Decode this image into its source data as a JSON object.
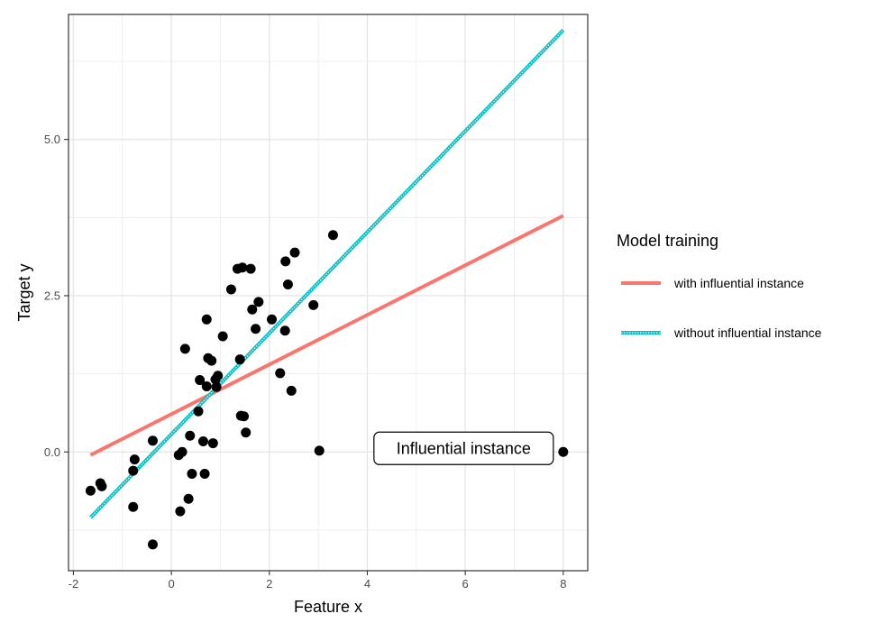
{
  "chart_data": {
    "type": "scatter",
    "title": "",
    "xlabel": "Feature x",
    "ylabel": "Target y",
    "xlim": [
      -2.1,
      8.5
    ],
    "ylim": [
      -1.9,
      7.0
    ],
    "x_ticks": [
      -2,
      0,
      2,
      4,
      6,
      8
    ],
    "x_tick_labels": [
      "-2",
      "0",
      "2",
      "4",
      "6",
      "8"
    ],
    "y_ticks": [
      0,
      2.5,
      5
    ],
    "y_tick_labels": [
      "0.0",
      "2.5",
      "5.0"
    ],
    "grid": true,
    "points": [
      {
        "x": -1.65,
        "y": -0.62
      },
      {
        "x": -1.42,
        "y": -0.55
      },
      {
        "x": -1.45,
        "y": -0.5
      },
      {
        "x": -0.75,
        "y": -0.12
      },
      {
        "x": -0.78,
        "y": -0.3
      },
      {
        "x": -0.78,
        "y": -0.88
      },
      {
        "x": -0.38,
        "y": 0.18
      },
      {
        "x": -0.38,
        "y": -1.48
      },
      {
        "x": 0.15,
        "y": -0.05
      },
      {
        "x": 0.22,
        "y": 0.0
      },
      {
        "x": 0.18,
        "y": -0.95
      },
      {
        "x": 0.35,
        "y": -0.75
      },
      {
        "x": 0.38,
        "y": 0.26
      },
      {
        "x": 0.42,
        "y": -0.35
      },
      {
        "x": 0.68,
        "y": -0.35
      },
      {
        "x": 0.65,
        "y": 0.17
      },
      {
        "x": 0.85,
        "y": 0.14
      },
      {
        "x": 0.55,
        "y": 0.65
      },
      {
        "x": 0.28,
        "y": 1.65
      },
      {
        "x": 0.58,
        "y": 1.15
      },
      {
        "x": 0.72,
        "y": 1.05
      },
      {
        "x": 0.72,
        "y": 2.12
      },
      {
        "x": 0.75,
        "y": 1.5
      },
      {
        "x": 0.82,
        "y": 1.46
      },
      {
        "x": 0.92,
        "y": 1.04
      },
      {
        "x": 0.9,
        "y": 1.16
      },
      {
        "x": 0.95,
        "y": 1.22
      },
      {
        "x": 1.05,
        "y": 1.85
      },
      {
        "x": 1.22,
        "y": 2.6
      },
      {
        "x": 1.35,
        "y": 2.93
      },
      {
        "x": 1.45,
        "y": 2.95
      },
      {
        "x": 1.62,
        "y": 2.93
      },
      {
        "x": 1.4,
        "y": 1.48
      },
      {
        "x": 1.42,
        "y": 0.58
      },
      {
        "x": 1.48,
        "y": 0.57
      },
      {
        "x": 1.52,
        "y": 0.31
      },
      {
        "x": 1.65,
        "y": 2.28
      },
      {
        "x": 1.78,
        "y": 2.4
      },
      {
        "x": 1.72,
        "y": 1.97
      },
      {
        "x": 2.05,
        "y": 2.12
      },
      {
        "x": 2.33,
        "y": 3.05
      },
      {
        "x": 2.52,
        "y": 3.19
      },
      {
        "x": 2.38,
        "y": 2.68
      },
      {
        "x": 2.32,
        "y": 1.94
      },
      {
        "x": 2.22,
        "y": 1.26
      },
      {
        "x": 2.45,
        "y": 0.98
      },
      {
        "x": 2.9,
        "y": 2.35
      },
      {
        "x": 3.02,
        "y": 0.02
      },
      {
        "x": 3.3,
        "y": 3.47
      },
      {
        "x": 8.0,
        "y": 0.0
      }
    ],
    "series": [
      {
        "name": "with influential instance",
        "color": "#F8766D",
        "x": [
          -1.65,
          8.0
        ],
        "y": [
          -0.05,
          3.78
        ]
      },
      {
        "name": "without influential instance",
        "color": "#00BFC4",
        "x": [
          -1.65,
          8.0
        ],
        "y": [
          -1.05,
          6.75
        ]
      }
    ],
    "legend": {
      "title": "Model training",
      "position": "right",
      "entries": [
        "with influential instance",
        "without influential instance"
      ]
    },
    "annotation": {
      "text": "Influential instance",
      "x": 8.0,
      "y": 0.0
    }
  }
}
